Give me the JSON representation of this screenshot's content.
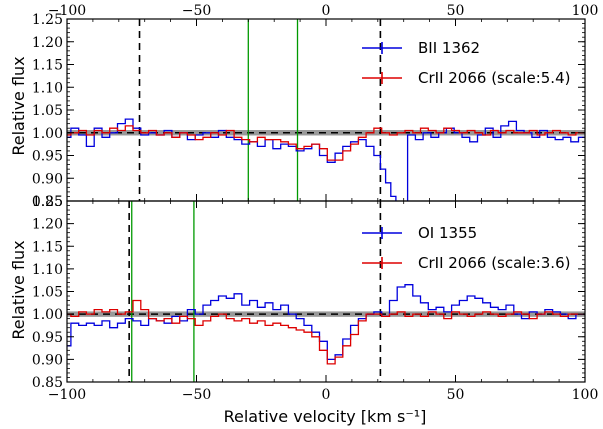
{
  "chart_data": [
    {
      "type": "line",
      "panel": "top",
      "xlim": [
        -100,
        100
      ],
      "ylim": [
        0.85,
        1.25
      ],
      "ylabel": "Relative flux",
      "yticks": [
        "0.85",
        "0.90",
        "0.95",
        "1.00",
        "1.05",
        "1.10",
        "1.15",
        "1.20",
        "1.25"
      ],
      "xticks_top": [
        "−100",
        "−50",
        "0",
        "50",
        "100"
      ],
      "continuum": 1.0,
      "vlines_black_dashed": [
        -72,
        21
      ],
      "vlines_green": [
        -30,
        -11
      ],
      "series": [
        {
          "name": "BII 1362",
          "color": "#0000dd",
          "x": [
            -100,
            -97,
            -94,
            -91,
            -88,
            -85,
            -82,
            -79,
            -76,
            -73,
            -70,
            -67,
            -64,
            -61,
            -58,
            -55,
            -52,
            -49,
            -46,
            -43,
            -40,
            -37,
            -34,
            -31,
            -28,
            -25,
            -22,
            -19,
            -16,
            -13,
            -10,
            -7,
            -4,
            -1,
            2,
            5,
            8,
            11,
            14,
            17,
            20,
            22,
            24,
            26,
            28,
            30,
            33,
            36,
            39,
            42,
            45,
            48,
            51,
            54,
            57,
            60,
            63,
            66,
            69,
            72,
            75,
            78,
            81,
            84,
            87,
            90,
            93,
            96,
            99
          ],
          "y": [
            0.99,
            1.01,
            0.995,
            0.97,
            1.01,
            0.99,
            1.0,
            1.02,
            1.03,
            1.01,
            0.995,
            1.0,
            0.995,
            1.005,
            0.99,
            1.0,
            0.985,
            0.995,
            1.0,
            0.99,
            1.005,
            0.99,
            0.985,
            0.975,
            0.98,
            0.97,
            0.985,
            0.965,
            0.975,
            0.97,
            0.96,
            0.965,
            0.975,
            0.95,
            0.935,
            0.955,
            0.97,
            0.98,
            0.985,
            0.97,
            0.95,
            0.92,
            0.89,
            0.86,
            0.84,
            0.84,
            0.995,
            0.985,
            1.0,
            0.99,
            1.0,
            1.01,
            1.0,
            0.99,
            0.98,
            0.995,
            1.01,
            0.99,
            1.015,
            1.025,
            1.005,
            1.0,
            0.99,
            1.005,
            0.99,
            0.985,
            0.99,
            0.98,
            0.99
          ]
        },
        {
          "name": "CrII 2066 (scale:5.4)",
          "color": "#dd0000",
          "x": [
            -100,
            -97,
            -94,
            -91,
            -88,
            -85,
            -82,
            -79,
            -76,
            -73,
            -70,
            -67,
            -64,
            -61,
            -58,
            -55,
            -52,
            -49,
            -46,
            -43,
            -40,
            -37,
            -34,
            -31,
            -28,
            -25,
            -22,
            -19,
            -16,
            -13,
            -10,
            -7,
            -4,
            -1,
            2,
            5,
            8,
            11,
            14,
            17,
            20,
            23,
            26,
            29,
            32,
            35,
            38,
            41,
            44,
            47,
            50,
            53,
            56,
            59,
            62,
            65,
            68,
            71,
            74,
            77,
            80,
            83,
            86,
            89,
            92,
            95,
            98
          ],
          "y": [
            0.995,
            1.0,
            1.005,
            0.995,
            1.005,
            1.0,
            1.01,
            1.005,
            1.015,
            1.005,
            1.0,
            1.005,
            0.995,
            1.0,
            0.99,
            1.0,
            0.995,
            0.985,
            0.99,
            1.0,
            0.995,
            1.005,
            0.99,
            0.985,
            0.98,
            0.99,
            0.985,
            0.985,
            0.98,
            0.975,
            0.965,
            0.97,
            0.975,
            0.965,
            0.94,
            0.94,
            0.96,
            0.975,
            0.99,
            1.0,
            1.01,
            1.0,
            0.995,
            1.0,
            1.005,
            1.0,
            1.01,
            1.005,
            1.0,
            1.01,
            1.005,
            1.0,
            1.005,
            1.0,
            0.995,
            1.005,
            1.0,
            1.005,
            1.0,
            1.0,
            1.005,
            0.995,
            1.0,
            1.005,
            1.0,
            0.995,
            1.0
          ]
        }
      ]
    },
    {
      "type": "line",
      "panel": "bottom",
      "xlim": [
        -100,
        100
      ],
      "ylim": [
        0.85,
        1.25
      ],
      "xlabel": "Relative velocity [km s⁻¹]",
      "ylabel": "Relative flux",
      "yticks": [
        "0.85",
        "0.90",
        "0.95",
        "1.00",
        "1.05",
        "1.10",
        "1.15",
        "1.20",
        "1.25"
      ],
      "xticks_bottom": [
        "−100",
        "−50",
        "0",
        "50",
        "100"
      ],
      "continuum": 1.0,
      "vlines_black_dashed": [
        -76,
        21
      ],
      "vlines_green": [
        -75,
        -51
      ],
      "series": [
        {
          "name": "OI 1355",
          "color": "#0000dd",
          "x": [
            -100,
            -97,
            -94,
            -91,
            -88,
            -85,
            -82,
            -79,
            -76,
            -73,
            -70,
            -67,
            -64,
            -61,
            -58,
            -55,
            -52,
            -49,
            -46,
            -43,
            -40,
            -37,
            -34,
            -31,
            -28,
            -25,
            -22,
            -19,
            -16,
            -13,
            -10,
            -7,
            -4,
            -1,
            2,
            5,
            8,
            11,
            14,
            17,
            20,
            23,
            26,
            29,
            32,
            35,
            38,
            41,
            44,
            47,
            50,
            53,
            56,
            59,
            62,
            65,
            68,
            71,
            74,
            77,
            80,
            83,
            86,
            89,
            92,
            95,
            98
          ],
          "y": [
            0.93,
            0.98,
            0.975,
            0.98,
            0.975,
            0.985,
            0.97,
            0.98,
            0.99,
            0.985,
            0.975,
            0.99,
            0.985,
            0.98,
            0.995,
            0.985,
            1.01,
            1.0,
            1.02,
            1.03,
            1.04,
            1.035,
            1.045,
            1.02,
            1.03,
            1.015,
            1.025,
            1.01,
            1.02,
            1.0,
            0.99,
            0.975,
            0.96,
            0.94,
            0.9,
            0.91,
            0.945,
            0.975,
            0.99,
            1.0,
            1.005,
            0.995,
            1.03,
            1.06,
            1.065,
            1.04,
            1.025,
            1.01,
            1.015,
            1.005,
            1.02,
            1.03,
            1.04,
            1.035,
            1.025,
            1.015,
            1.01,
            1.02,
            1.0,
            0.99,
            1.005,
            1.0,
            1.01,
            1.005,
            1.0,
            0.99,
            1.0
          ]
        },
        {
          "name": "CrII 2066 (scale:3.6)",
          "color": "#dd0000",
          "x": [
            -100,
            -97,
            -94,
            -91,
            -88,
            -85,
            -82,
            -79,
            -76,
            -73,
            -70,
            -67,
            -64,
            -61,
            -58,
            -55,
            -52,
            -49,
            -46,
            -43,
            -40,
            -37,
            -34,
            -31,
            -28,
            -25,
            -22,
            -19,
            -16,
            -13,
            -10,
            -7,
            -4,
            -1,
            2,
            5,
            8,
            11,
            14,
            17,
            20,
            23,
            26,
            29,
            32,
            35,
            38,
            41,
            44,
            47,
            50,
            53,
            56,
            59,
            62,
            65,
            68,
            71,
            74,
            77,
            80,
            83,
            86,
            89,
            92,
            95,
            98
          ],
          "y": [
            1.0,
            0.995,
            1.005,
            1.0,
            1.01,
            1.005,
            1.01,
            1.0,
            1.005,
            1.03,
            1.01,
            0.99,
            0.985,
            0.99,
            0.98,
            0.995,
            0.99,
            0.975,
            0.985,
            0.995,
            1.0,
            0.99,
            0.985,
            0.99,
            0.98,
            0.985,
            0.975,
            0.98,
            0.975,
            0.97,
            0.965,
            0.96,
            0.95,
            0.92,
            0.89,
            0.905,
            0.93,
            0.955,
            0.985,
            1.0,
            1.0,
            0.995,
            1.0,
            1.005,
            0.995,
            1.0,
            0.995,
            1.005,
            1.0,
            0.99,
            1.005,
            1.0,
            0.995,
            1.0,
            1.005,
            1.0,
            0.995,
            1.0,
            1.005,
            1.0,
            0.99,
            1.0,
            1.005,
            1.0,
            0.995,
            1.0,
            1.0
          ]
        }
      ]
    }
  ]
}
